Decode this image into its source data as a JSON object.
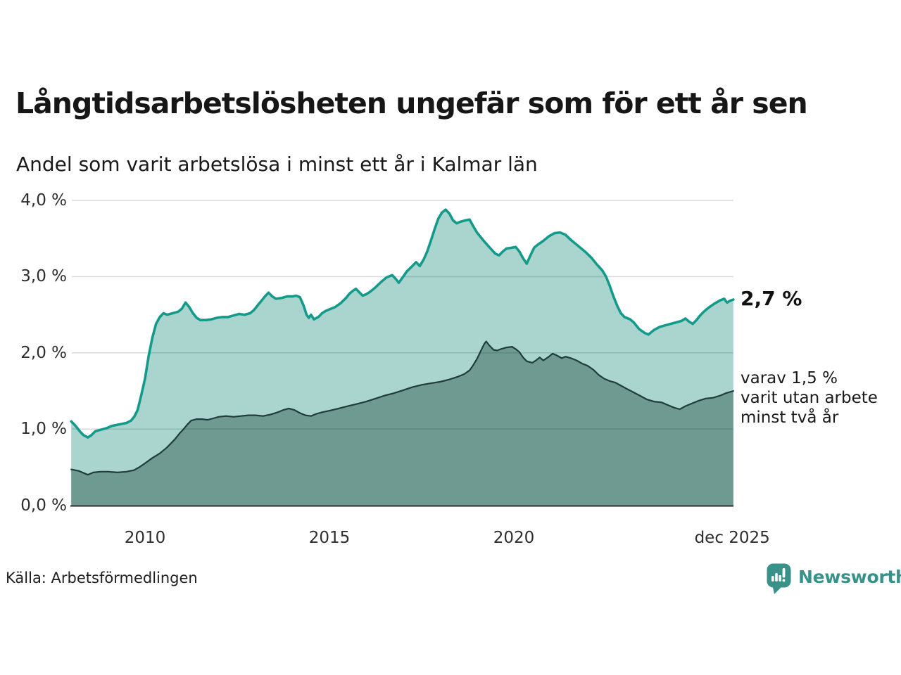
{
  "title": "Långtidsarbetslösheten ungefär som för ett år sen",
  "subtitle": "Andel som varit arbetslösa i minst ett år i Kalmar län",
  "annotations": {
    "total_value": "2,7 %",
    "secondary_lines": [
      "varav 1,5 %",
      "varit utan arbete",
      "minst två år"
    ]
  },
  "source": "Källa: Arbetsförmedlingen",
  "logo": {
    "wordmark": "Newsworthy",
    "brand_color": "#38928a"
  },
  "colors": {
    "line_total": "#149a8b",
    "fill_total": "#a9d5ce",
    "line_two_years": "#203d3a",
    "fill_two_years": "#6f9a91",
    "gridline": "#dcdcdc",
    "axis": "#3e3e3e",
    "text": "#1a1a1a"
  },
  "chart_data": {
    "type": "area",
    "title": "Långtidsarbetslösheten ungefär som för ett år sen",
    "subtitle": "Andel som varit arbetslösa i minst ett år i Kalmar län",
    "unit": "%",
    "xlim": [
      2008.0,
      2025.95
    ],
    "ylim": [
      0,
      4
    ],
    "grid": true,
    "y_ticks": [
      {
        "label": "0,0 %",
        "value": 0
      },
      {
        "label": "1,0 %",
        "value": 1
      },
      {
        "label": "2,0 %",
        "value": 2
      },
      {
        "label": "3,0 %",
        "value": 3
      },
      {
        "label": "4,0 %",
        "value": 4
      }
    ],
    "x_ticks": [
      {
        "label": "2010",
        "year": 2010
      },
      {
        "label": "2015",
        "year": 2015
      },
      {
        "label": "2020",
        "year": 2020
      },
      {
        "label": "dec 2025",
        "year": 2025.92
      }
    ],
    "end_labels": {
      "total": "2,7 %",
      "two_years": "1,5 %"
    },
    "series": [
      {
        "name": "arbetslösa minst ett år",
        "line_color": "#149a8b",
        "fill_color": "#a9d5ce",
        "end_value": 2.7,
        "points": [
          [
            2008.0,
            1.1
          ],
          [
            2008.08,
            1.06
          ],
          [
            2008.17,
            1.01
          ],
          [
            2008.25,
            0.96
          ],
          [
            2008.33,
            0.92
          ],
          [
            2008.45,
            0.89
          ],
          [
            2008.55,
            0.92
          ],
          [
            2008.65,
            0.97
          ],
          [
            2008.8,
            0.99
          ],
          [
            2008.95,
            1.01
          ],
          [
            2009.1,
            1.04
          ],
          [
            2009.3,
            1.06
          ],
          [
            2009.5,
            1.08
          ],
          [
            2009.62,
            1.11
          ],
          [
            2009.72,
            1.17
          ],
          [
            2009.8,
            1.25
          ],
          [
            2009.9,
            1.45
          ],
          [
            2010.0,
            1.66
          ],
          [
            2010.1,
            1.96
          ],
          [
            2010.2,
            2.2
          ],
          [
            2010.3,
            2.38
          ],
          [
            2010.4,
            2.47
          ],
          [
            2010.5,
            2.52
          ],
          [
            2010.6,
            2.5
          ],
          [
            2010.75,
            2.52
          ],
          [
            2010.9,
            2.54
          ],
          [
            2011.0,
            2.58
          ],
          [
            2011.1,
            2.66
          ],
          [
            2011.2,
            2.6
          ],
          [
            2011.3,
            2.52
          ],
          [
            2011.4,
            2.46
          ],
          [
            2011.5,
            2.43
          ],
          [
            2011.65,
            2.43
          ],
          [
            2011.8,
            2.44
          ],
          [
            2011.95,
            2.46
          ],
          [
            2012.1,
            2.47
          ],
          [
            2012.25,
            2.47
          ],
          [
            2012.4,
            2.49
          ],
          [
            2012.55,
            2.51
          ],
          [
            2012.7,
            2.5
          ],
          [
            2012.85,
            2.52
          ],
          [
            2012.95,
            2.56
          ],
          [
            2013.05,
            2.62
          ],
          [
            2013.15,
            2.68
          ],
          [
            2013.25,
            2.74
          ],
          [
            2013.35,
            2.79
          ],
          [
            2013.45,
            2.74
          ],
          [
            2013.55,
            2.71
          ],
          [
            2013.7,
            2.72
          ],
          [
            2013.85,
            2.74
          ],
          [
            2014.0,
            2.74
          ],
          [
            2014.1,
            2.75
          ],
          [
            2014.2,
            2.73
          ],
          [
            2014.3,
            2.62
          ],
          [
            2014.38,
            2.5
          ],
          [
            2014.44,
            2.46
          ],
          [
            2014.5,
            2.5
          ],
          [
            2014.58,
            2.44
          ],
          [
            2014.7,
            2.47
          ],
          [
            2014.8,
            2.52
          ],
          [
            2014.9,
            2.55
          ],
          [
            2015.0,
            2.57
          ],
          [
            2015.15,
            2.6
          ],
          [
            2015.3,
            2.65
          ],
          [
            2015.45,
            2.72
          ],
          [
            2015.55,
            2.78
          ],
          [
            2015.65,
            2.82
          ],
          [
            2015.72,
            2.84
          ],
          [
            2015.8,
            2.8
          ],
          [
            2015.9,
            2.75
          ],
          [
            2016.0,
            2.77
          ],
          [
            2016.1,
            2.8
          ],
          [
            2016.25,
            2.86
          ],
          [
            2016.4,
            2.93
          ],
          [
            2016.55,
            2.99
          ],
          [
            2016.7,
            3.02
          ],
          [
            2016.8,
            2.97
          ],
          [
            2016.88,
            2.92
          ],
          [
            2017.0,
            3.0
          ],
          [
            2017.1,
            3.07
          ],
          [
            2017.25,
            3.14
          ],
          [
            2017.35,
            3.19
          ],
          [
            2017.45,
            3.14
          ],
          [
            2017.55,
            3.22
          ],
          [
            2017.65,
            3.33
          ],
          [
            2017.75,
            3.47
          ],
          [
            2017.85,
            3.62
          ],
          [
            2017.95,
            3.76
          ],
          [
            2018.05,
            3.84
          ],
          [
            2018.15,
            3.88
          ],
          [
            2018.25,
            3.83
          ],
          [
            2018.35,
            3.74
          ],
          [
            2018.45,
            3.7
          ],
          [
            2018.55,
            3.72
          ],
          [
            2018.7,
            3.74
          ],
          [
            2018.8,
            3.75
          ],
          [
            2018.9,
            3.66
          ],
          [
            2019.0,
            3.58
          ],
          [
            2019.1,
            3.52
          ],
          [
            2019.2,
            3.46
          ],
          [
            2019.35,
            3.38
          ],
          [
            2019.5,
            3.3
          ],
          [
            2019.6,
            3.28
          ],
          [
            2019.7,
            3.33
          ],
          [
            2019.8,
            3.37
          ],
          [
            2019.95,
            3.38
          ],
          [
            2020.05,
            3.39
          ],
          [
            2020.15,
            3.33
          ],
          [
            2020.25,
            3.24
          ],
          [
            2020.35,
            3.17
          ],
          [
            2020.45,
            3.28
          ],
          [
            2020.55,
            3.38
          ],
          [
            2020.65,
            3.42
          ],
          [
            2020.8,
            3.47
          ],
          [
            2020.95,
            3.53
          ],
          [
            2021.1,
            3.57
          ],
          [
            2021.25,
            3.58
          ],
          [
            2021.4,
            3.55
          ],
          [
            2021.55,
            3.48
          ],
          [
            2021.7,
            3.42
          ],
          [
            2021.85,
            3.36
          ],
          [
            2021.95,
            3.32
          ],
          [
            2022.1,
            3.25
          ],
          [
            2022.25,
            3.16
          ],
          [
            2022.4,
            3.08
          ],
          [
            2022.5,
            3.0
          ],
          [
            2022.6,
            2.88
          ],
          [
            2022.7,
            2.74
          ],
          [
            2022.8,
            2.62
          ],
          [
            2022.9,
            2.52
          ],
          [
            2023.0,
            2.47
          ],
          [
            2023.15,
            2.44
          ],
          [
            2023.25,
            2.4
          ],
          [
            2023.4,
            2.31
          ],
          [
            2023.55,
            2.26
          ],
          [
            2023.65,
            2.24
          ],
          [
            2023.8,
            2.3
          ],
          [
            2023.95,
            2.34
          ],
          [
            2024.1,
            2.36
          ],
          [
            2024.25,
            2.38
          ],
          [
            2024.4,
            2.4
          ],
          [
            2024.55,
            2.42
          ],
          [
            2024.65,
            2.45
          ],
          [
            2024.75,
            2.41
          ],
          [
            2024.85,
            2.38
          ],
          [
            2024.95,
            2.43
          ],
          [
            2025.05,
            2.49
          ],
          [
            2025.15,
            2.54
          ],
          [
            2025.3,
            2.6
          ],
          [
            2025.45,
            2.65
          ],
          [
            2025.6,
            2.69
          ],
          [
            2025.7,
            2.71
          ],
          [
            2025.78,
            2.66
          ],
          [
            2025.85,
            2.68
          ],
          [
            2025.95,
            2.7
          ]
        ]
      },
      {
        "name": "varav varit utan arbete minst två år",
        "line_color": "#203d3a",
        "fill_color": "#6f9a91",
        "end_value": 1.5,
        "points": [
          [
            2008.0,
            0.47
          ],
          [
            2008.2,
            0.45
          ],
          [
            2008.45,
            0.4
          ],
          [
            2008.6,
            0.43
          ],
          [
            2008.8,
            0.44
          ],
          [
            2009.0,
            0.44
          ],
          [
            2009.25,
            0.43
          ],
          [
            2009.5,
            0.44
          ],
          [
            2009.7,
            0.46
          ],
          [
            2009.85,
            0.5
          ],
          [
            2010.0,
            0.55
          ],
          [
            2010.2,
            0.62
          ],
          [
            2010.4,
            0.68
          ],
          [
            2010.6,
            0.76
          ],
          [
            2010.8,
            0.86
          ],
          [
            2010.95,
            0.95
          ],
          [
            2011.05,
            1.0
          ],
          [
            2011.15,
            1.06
          ],
          [
            2011.25,
            1.11
          ],
          [
            2011.4,
            1.13
          ],
          [
            2011.55,
            1.13
          ],
          [
            2011.7,
            1.12
          ],
          [
            2011.85,
            1.14
          ],
          [
            2012.0,
            1.16
          ],
          [
            2012.2,
            1.17
          ],
          [
            2012.4,
            1.16
          ],
          [
            2012.6,
            1.17
          ],
          [
            2012.8,
            1.18
          ],
          [
            2013.0,
            1.18
          ],
          [
            2013.2,
            1.17
          ],
          [
            2013.4,
            1.19
          ],
          [
            2013.6,
            1.22
          ],
          [
            2013.75,
            1.25
          ],
          [
            2013.9,
            1.27
          ],
          [
            2014.05,
            1.25
          ],
          [
            2014.2,
            1.21
          ],
          [
            2014.35,
            1.18
          ],
          [
            2014.5,
            1.17
          ],
          [
            2014.65,
            1.2
          ],
          [
            2014.8,
            1.22
          ],
          [
            2015.0,
            1.24
          ],
          [
            2015.25,
            1.27
          ],
          [
            2015.5,
            1.3
          ],
          [
            2015.75,
            1.33
          ],
          [
            2016.0,
            1.36
          ],
          [
            2016.25,
            1.4
          ],
          [
            2016.5,
            1.44
          ],
          [
            2016.75,
            1.47
          ],
          [
            2017.0,
            1.51
          ],
          [
            2017.25,
            1.55
          ],
          [
            2017.5,
            1.58
          ],
          [
            2017.75,
            1.6
          ],
          [
            2018.0,
            1.62
          ],
          [
            2018.25,
            1.65
          ],
          [
            2018.5,
            1.69
          ],
          [
            2018.65,
            1.72
          ],
          [
            2018.8,
            1.77
          ],
          [
            2018.9,
            1.84
          ],
          [
            2019.0,
            1.92
          ],
          [
            2019.1,
            2.02
          ],
          [
            2019.2,
            2.12
          ],
          [
            2019.25,
            2.15
          ],
          [
            2019.33,
            2.1
          ],
          [
            2019.45,
            2.04
          ],
          [
            2019.55,
            2.03
          ],
          [
            2019.65,
            2.05
          ],
          [
            2019.8,
            2.07
          ],
          [
            2019.95,
            2.08
          ],
          [
            2020.05,
            2.05
          ],
          [
            2020.15,
            2.01
          ],
          [
            2020.25,
            1.94
          ],
          [
            2020.35,
            1.89
          ],
          [
            2020.5,
            1.87
          ],
          [
            2020.6,
            1.9
          ],
          [
            2020.7,
            1.94
          ],
          [
            2020.8,
            1.9
          ],
          [
            2020.95,
            1.95
          ],
          [
            2021.05,
            1.99
          ],
          [
            2021.15,
            1.97
          ],
          [
            2021.3,
            1.93
          ],
          [
            2021.4,
            1.95
          ],
          [
            2021.55,
            1.93
          ],
          [
            2021.7,
            1.9
          ],
          [
            2021.85,
            1.86
          ],
          [
            2022.0,
            1.83
          ],
          [
            2022.15,
            1.78
          ],
          [
            2022.3,
            1.71
          ],
          [
            2022.45,
            1.66
          ],
          [
            2022.6,
            1.63
          ],
          [
            2022.75,
            1.61
          ],
          [
            2022.9,
            1.57
          ],
          [
            2023.05,
            1.53
          ],
          [
            2023.25,
            1.48
          ],
          [
            2023.45,
            1.43
          ],
          [
            2023.6,
            1.39
          ],
          [
            2023.8,
            1.36
          ],
          [
            2024.0,
            1.35
          ],
          [
            2024.2,
            1.31
          ],
          [
            2024.35,
            1.28
          ],
          [
            2024.5,
            1.26
          ],
          [
            2024.65,
            1.3
          ],
          [
            2024.8,
            1.33
          ],
          [
            2025.0,
            1.37
          ],
          [
            2025.2,
            1.4
          ],
          [
            2025.4,
            1.41
          ],
          [
            2025.6,
            1.44
          ],
          [
            2025.75,
            1.47
          ],
          [
            2025.95,
            1.5
          ]
        ]
      }
    ]
  }
}
